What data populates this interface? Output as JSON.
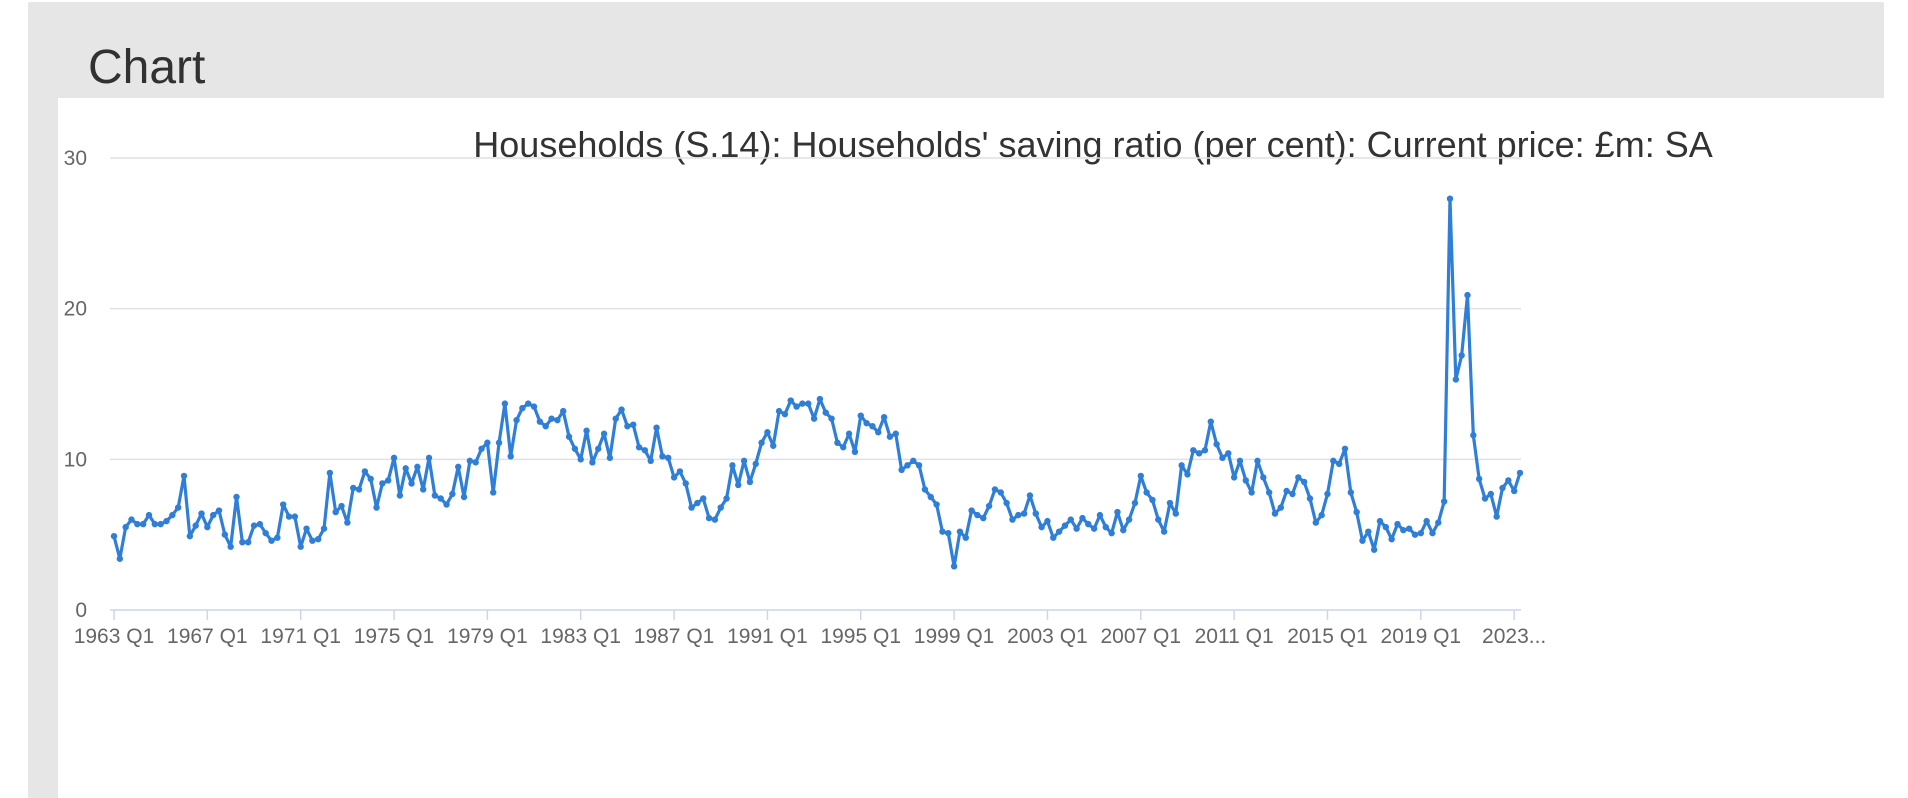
{
  "panel": {
    "heading": "Chart"
  },
  "chart_data": {
    "type": "line",
    "title": "Households (S.14): Households' saving ratio (per cent): Current price: £m: SA",
    "xlabel": "",
    "ylabel": "",
    "ylim": [
      0,
      30
    ],
    "y_ticks": [
      "0",
      "10",
      "20",
      "30"
    ],
    "x_tick_labels": [
      "1963 Q1",
      "1967 Q1",
      "1971 Q1",
      "1975 Q1",
      "1979 Q1",
      "1983 Q1",
      "1987 Q1",
      "1991 Q1",
      "1995 Q1",
      "1999 Q1",
      "2003 Q1",
      "2007 Q1",
      "2011 Q1",
      "2015 Q1",
      "2019 Q1",
      "2023..."
    ],
    "grid": true,
    "legend": "none",
    "series_color": "#2f7ed8",
    "start_period": "1963 Q1",
    "values": [
      4.9,
      3.4,
      5.5,
      6.0,
      5.7,
      5.7,
      6.3,
      5.7,
      5.7,
      5.9,
      6.3,
      6.8,
      8.9,
      4.9,
      5.6,
      6.4,
      5.5,
      6.3,
      6.6,
      5.0,
      4.2,
      7.5,
      4.5,
      4.5,
      5.6,
      5.7,
      5.1,
      4.6,
      4.8,
      7.0,
      6.2,
      6.2,
      4.2,
      5.4,
      4.6,
      4.7,
      5.4,
      9.1,
      6.5,
      6.9,
      5.8,
      8.1,
      8.0,
      9.2,
      8.7,
      6.8,
      8.4,
      8.6,
      10.1,
      7.6,
      9.4,
      8.4,
      9.5,
      8.0,
      10.1,
      7.6,
      7.4,
      7.0,
      7.7,
      9.5,
      7.5,
      9.9,
      9.8,
      10.7,
      11.1,
      7.8,
      11.1,
      13.7,
      10.2,
      12.6,
      13.4,
      13.7,
      13.5,
      12.5,
      12.2,
      12.7,
      12.6,
      13.2,
      11.5,
      10.7,
      10.0,
      11.9,
      9.8,
      10.7,
      11.7,
      10.1,
      12.7,
      13.3,
      12.2,
      12.3,
      10.8,
      10.6,
      9.9,
      12.1,
      10.2,
      10.1,
      8.8,
      9.2,
      8.4,
      6.8,
      7.1,
      7.4,
      6.1,
      6.0,
      6.8,
      7.4,
      9.6,
      8.3,
      9.9,
      8.5,
      9.7,
      11.1,
      11.8,
      10.9,
      13.2,
      13.0,
      13.9,
      13.5,
      13.7,
      13.7,
      12.7,
      14.0,
      13.1,
      12.7,
      11.1,
      10.8,
      11.7,
      10.5,
      12.9,
      12.4,
      12.2,
      11.8,
      12.8,
      11.5,
      11.7,
      9.3,
      9.6,
      9.9,
      9.6,
      8.0,
      7.5,
      7.0,
      5.2,
      5.1,
      2.9,
      5.2,
      4.8,
      6.6,
      6.3,
      6.1,
      6.9,
      8.0,
      7.8,
      7.1,
      6.0,
      6.3,
      6.4,
      7.6,
      6.4,
      5.5,
      5.9,
      4.8,
      5.2,
      5.6,
      6.0,
      5.4,
      6.1,
      5.7,
      5.4,
      6.3,
      5.5,
      5.1,
      6.5,
      5.3,
      6.0,
      7.1,
      8.9,
      7.8,
      7.3,
      6.0,
      5.2,
      7.1,
      6.4,
      9.6,
      9.0,
      10.6,
      10.4,
      10.6,
      12.5,
      11.0,
      10.1,
      10.4,
      8.8,
      9.9,
      8.6,
      7.8,
      9.9,
      8.8,
      7.8,
      6.4,
      6.8,
      7.9,
      7.7,
      8.8,
      8.5,
      7.4,
      5.8,
      6.3,
      7.7,
      9.9,
      9.7,
      10.7,
      7.8,
      6.5,
      4.6,
      5.2,
      4.0,
      5.9,
      5.5,
      4.7,
      5.7,
      5.3,
      5.4,
      5.0,
      5.1,
      5.9,
      5.1,
      5.8,
      7.2,
      27.3,
      15.3,
      16.9,
      20.9,
      11.6,
      8.7,
      7.4,
      7.7,
      6.2,
      8.1,
      8.6,
      7.9,
      9.1
    ]
  }
}
